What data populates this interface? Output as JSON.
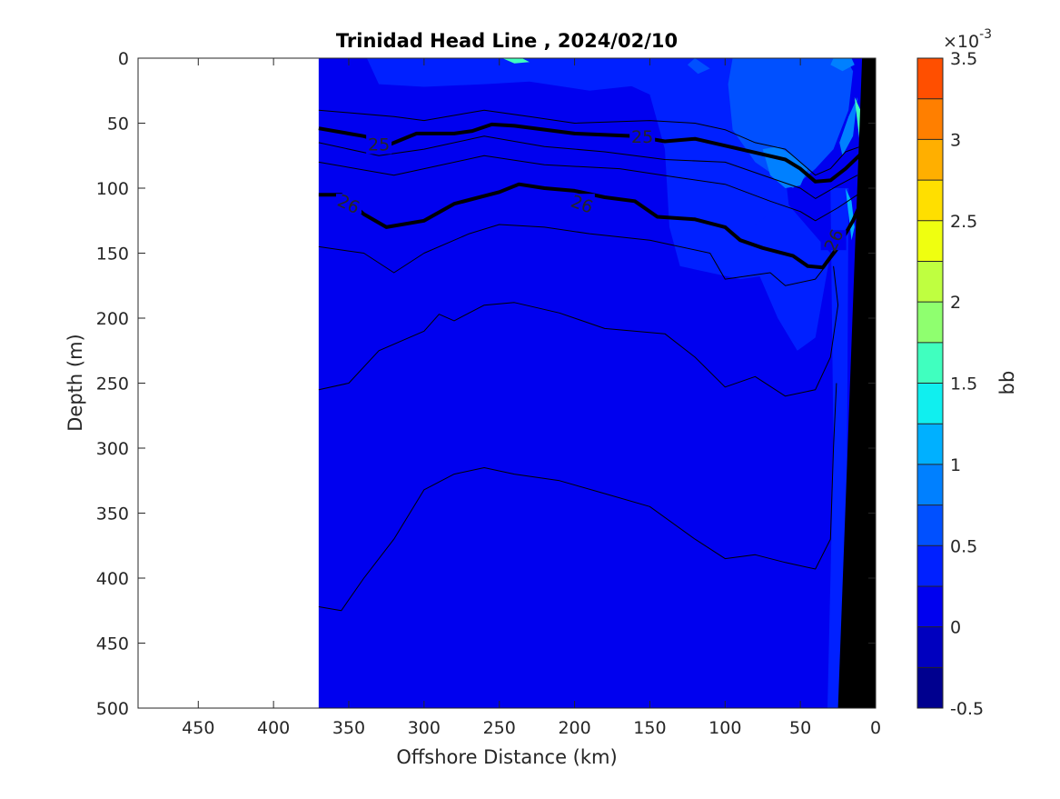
{
  "chart_data": {
    "type": "heatmap",
    "title": "Trinidad Head Line , 2024/02/10",
    "xlabel": "Offshore Distance (km)",
    "ylabel": "Depth (m)",
    "xlim": [
      490,
      0
    ],
    "ylim": [
      0,
      500
    ],
    "x_reversed": true,
    "y_reversed": true,
    "x_ticks": [
      450,
      400,
      350,
      300,
      250,
      200,
      150,
      100,
      50,
      0
    ],
    "y_ticks": [
      0,
      50,
      100,
      150,
      200,
      250,
      300,
      350,
      400,
      450,
      500
    ],
    "data_extent_x": [
      370,
      0
    ],
    "colorbar": {
      "label": "bb",
      "exponent_label": "×10",
      "exponent_power": "-3",
      "range": [
        -0.5,
        3.5
      ],
      "ticks": [
        -0.5,
        0,
        0.5,
        1,
        1.5,
        2,
        2.5,
        3,
        3.5
      ],
      "tick_labels": [
        "-0.5",
        "0",
        "0.5",
        "1",
        "1.5",
        "2",
        "2.5",
        "3",
        "3.5"
      ],
      "levels": [
        -0.5,
        -0.25,
        0,
        0.25,
        0.5,
        0.75,
        1,
        1.25,
        1.5,
        1.75,
        2,
        2.25,
        2.5,
        2.75,
        3,
        3.25,
        3.5
      ],
      "colors": [
        "#00008f",
        "#0000bf",
        "#0000ef",
        "#0020ff",
        "#0050ff",
        "#0080ff",
        "#00b0ff",
        "#10efef",
        "#40ffbf",
        "#8fff6f",
        "#bfff40",
        "#efff10",
        "#ffdf00",
        "#ffaf00",
        "#ff7f00",
        "#ff4f00",
        "#ef0000",
        "#af0000"
      ]
    },
    "background_value": 0.1,
    "regions": [
      {
        "value": 0.4,
        "points": [
          [
            370,
            0
          ],
          [
            338,
            0
          ],
          [
            330,
            20
          ],
          [
            300,
            22
          ],
          [
            260,
            20
          ],
          [
            230,
            18
          ],
          [
            190,
            25
          ],
          [
            150,
            20
          ],
          [
            140,
            5
          ],
          [
            145,
            0
          ]
        ]
      },
      {
        "value": 0.4,
        "points": [
          [
            170,
            0
          ],
          [
            165,
            20
          ],
          [
            150,
            28
          ],
          [
            140,
            70
          ],
          [
            137,
            130
          ],
          [
            130,
            160
          ],
          [
            90,
            170
          ],
          [
            60,
            165
          ],
          [
            55,
            140
          ],
          [
            60,
            90
          ],
          [
            50,
            60
          ],
          [
            40,
            30
          ],
          [
            45,
            0
          ]
        ]
      },
      {
        "value": 0.4,
        "points": [
          [
            82,
            130
          ],
          [
            78,
            165
          ],
          [
            65,
            200
          ],
          [
            52,
            225
          ],
          [
            40,
            215
          ],
          [
            30,
            150
          ],
          [
            45,
            130
          ],
          [
            60,
            110
          ]
        ]
      },
      {
        "value": 0.4,
        "points": [
          [
            30,
            100
          ],
          [
            28,
            300
          ],
          [
            32,
            500
          ],
          [
            20,
            500
          ],
          [
            18,
            100
          ]
        ]
      },
      {
        "value": 0.7,
        "points": [
          [
            95,
            0
          ],
          [
            98,
            20
          ],
          [
            95,
            55
          ],
          [
            80,
            80
          ],
          [
            55,
            100
          ],
          [
            40,
            85
          ],
          [
            28,
            70
          ],
          [
            18,
            40
          ],
          [
            15,
            10
          ],
          [
            20,
            0
          ]
        ]
      },
      {
        "value": 0.7,
        "points": [
          [
            120,
            0
          ],
          [
            125,
            5
          ],
          [
            118,
            12
          ],
          [
            110,
            8
          ]
        ]
      },
      {
        "value": 0.9,
        "points": [
          [
            75,
            70
          ],
          [
            70,
            90
          ],
          [
            60,
            100
          ],
          [
            50,
            98
          ],
          [
            45,
            85
          ],
          [
            55,
            75
          ],
          [
            65,
            68
          ]
        ]
      },
      {
        "value": 0.9,
        "points": [
          [
            30,
            5
          ],
          [
            22,
            10
          ],
          [
            14,
            5
          ],
          [
            16,
            0
          ],
          [
            28,
            0
          ]
        ]
      },
      {
        "value": 0.9,
        "points": [
          [
            22,
            75
          ],
          [
            15,
            60
          ],
          [
            12,
            30
          ],
          [
            10,
            25
          ],
          [
            18,
            45
          ],
          [
            24,
            65
          ]
        ]
      },
      {
        "value": 1.1,
        "points": [
          [
            20,
            100
          ],
          [
            18,
            120
          ],
          [
            16,
            140
          ],
          [
            14,
            130
          ],
          [
            16,
            110
          ]
        ]
      },
      {
        "value": 1.7,
        "points": [
          [
            14,
            30
          ],
          [
            10,
            70
          ],
          [
            9,
            60
          ],
          [
            10,
            40
          ]
        ]
      },
      {
        "value": 1.7,
        "points": [
          [
            248,
            0
          ],
          [
            240,
            4
          ],
          [
            230,
            3
          ],
          [
            235,
            0
          ]
        ]
      }
    ],
    "bathymetry": [
      [
        9,
        0
      ],
      [
        0,
        0
      ],
      [
        0,
        500
      ],
      [
        25,
        500
      ]
    ],
    "contours": [
      {
        "label": "",
        "bold": false,
        "points": [
          [
            370,
            40
          ],
          [
            320,
            45
          ],
          [
            300,
            48
          ],
          [
            260,
            40
          ],
          [
            230,
            45
          ],
          [
            200,
            50
          ],
          [
            150,
            48
          ],
          [
            120,
            50
          ],
          [
            100,
            55
          ],
          [
            80,
            65
          ],
          [
            60,
            70
          ],
          [
            50,
            80
          ],
          [
            40,
            90
          ],
          [
            30,
            85
          ],
          [
            20,
            72
          ],
          [
            10,
            68
          ]
        ]
      },
      {
        "label": "25",
        "bold": true,
        "points": [
          [
            370,
            54
          ],
          [
            340,
            60
          ],
          [
            322,
            66
          ],
          [
            305,
            58
          ],
          [
            280,
            58
          ],
          [
            268,
            56
          ],
          [
            255,
            51
          ],
          [
            240,
            52
          ],
          [
            200,
            58
          ],
          [
            160,
            60
          ],
          [
            140,
            64
          ],
          [
            120,
            62
          ],
          [
            90,
            70
          ],
          [
            60,
            78
          ],
          [
            50,
            85
          ],
          [
            40,
            95
          ],
          [
            30,
            94
          ],
          [
            20,
            85
          ],
          [
            10,
            74
          ]
        ]
      },
      {
        "label": "",
        "bold": false,
        "points": [
          [
            370,
            65
          ],
          [
            330,
            75
          ],
          [
            300,
            70
          ],
          [
            260,
            60
          ],
          [
            220,
            68
          ],
          [
            180,
            72
          ],
          [
            140,
            78
          ],
          [
            100,
            80
          ],
          [
            70,
            92
          ],
          [
            50,
            100
          ],
          [
            40,
            108
          ],
          [
            25,
            98
          ],
          [
            12,
            90
          ]
        ]
      },
      {
        "label": "",
        "bold": false,
        "points": [
          [
            370,
            80
          ],
          [
            320,
            90
          ],
          [
            300,
            85
          ],
          [
            260,
            75
          ],
          [
            220,
            82
          ],
          [
            170,
            85
          ],
          [
            130,
            92
          ],
          [
            100,
            97
          ],
          [
            70,
            110
          ],
          [
            50,
            118
          ],
          [
            40,
            125
          ],
          [
            25,
            115
          ],
          [
            12,
            105
          ]
        ]
      },
      {
        "label": "26",
        "bold": true,
        "points": [
          [
            370,
            105
          ],
          [
            355,
            105
          ],
          [
            340,
            120
          ],
          [
            325,
            130
          ],
          [
            300,
            125
          ],
          [
            280,
            112
          ],
          [
            250,
            103
          ],
          [
            237,
            97
          ],
          [
            220,
            100
          ],
          [
            200,
            102
          ],
          [
            180,
            107
          ],
          [
            160,
            110
          ],
          [
            145,
            122
          ],
          [
            120,
            124
          ],
          [
            100,
            130
          ],
          [
            90,
            140
          ],
          [
            75,
            146
          ],
          [
            55,
            152
          ],
          [
            45,
            160
          ],
          [
            35,
            161
          ],
          [
            25,
            145
          ],
          [
            15,
            125
          ],
          [
            10,
            112
          ]
        ]
      },
      {
        "label": "",
        "bold": false,
        "points": [
          [
            370,
            145
          ],
          [
            340,
            150
          ],
          [
            320,
            165
          ],
          [
            300,
            150
          ],
          [
            270,
            135
          ],
          [
            250,
            128
          ],
          [
            220,
            130
          ],
          [
            190,
            135
          ],
          [
            150,
            140
          ],
          [
            110,
            150
          ],
          [
            100,
            170
          ],
          [
            70,
            165
          ],
          [
            60,
            175
          ],
          [
            40,
            170
          ],
          [
            30,
            155
          ],
          [
            20,
            140
          ]
        ]
      },
      {
        "label": "",
        "bold": false,
        "points": [
          [
            370,
            255
          ],
          [
            350,
            250
          ],
          [
            330,
            225
          ],
          [
            300,
            210
          ],
          [
            290,
            197
          ],
          [
            280,
            202
          ],
          [
            260,
            190
          ],
          [
            240,
            188
          ],
          [
            210,
            196
          ],
          [
            180,
            208
          ],
          [
            140,
            212
          ],
          [
            120,
            230
          ],
          [
            100,
            253
          ],
          [
            80,
            245
          ],
          [
            60,
            260
          ],
          [
            40,
            255
          ],
          [
            30,
            230
          ],
          [
            25,
            190
          ],
          [
            28,
            160
          ]
        ]
      },
      {
        "label": "",
        "bold": false,
        "points": [
          [
            370,
            422
          ],
          [
            355,
            425
          ],
          [
            340,
            400
          ],
          [
            320,
            370
          ],
          [
            300,
            332
          ],
          [
            280,
            320
          ],
          [
            260,
            315
          ],
          [
            240,
            320
          ],
          [
            210,
            325
          ],
          [
            180,
            335
          ],
          [
            150,
            345
          ],
          [
            120,
            370
          ],
          [
            100,
            385
          ],
          [
            80,
            382
          ],
          [
            60,
            388
          ],
          [
            40,
            393
          ],
          [
            30,
            370
          ],
          [
            28,
            300
          ],
          [
            26,
            250
          ]
        ]
      }
    ]
  }
}
